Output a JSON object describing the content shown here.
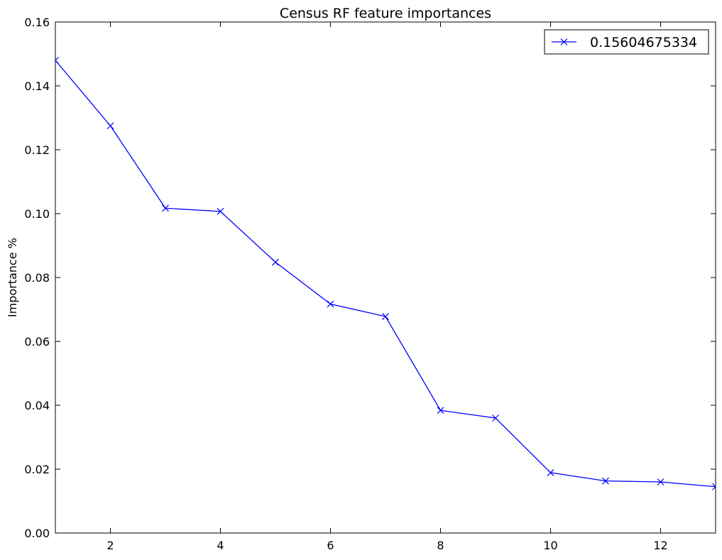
{
  "chart_data": {
    "type": "line",
    "title": "Census RF feature importances",
    "xlabel": "",
    "ylabel": "Importance %",
    "xlim": [
      1,
      13
    ],
    "ylim": [
      0,
      0.16
    ],
    "x_ticks": [
      2,
      4,
      6,
      8,
      10,
      12
    ],
    "y_ticks": [
      "0.00",
      "0.02",
      "0.04",
      "0.06",
      "0.08",
      "0.10",
      "0.12",
      "0.14",
      "0.16"
    ],
    "grid": false,
    "legend_position": "top-right",
    "series": [
      {
        "name": "0.15604675334",
        "color": "#0000ff",
        "marker": "x",
        "x": [
          1,
          2,
          3,
          4,
          5,
          6,
          7,
          8,
          9,
          10,
          11,
          12,
          13
        ],
        "y": [
          0.148,
          0.1275,
          0.1017,
          0.1007,
          0.0848,
          0.0717,
          0.0678,
          0.0384,
          0.036,
          0.0189,
          0.0163,
          0.016,
          0.0145
        ]
      }
    ]
  }
}
